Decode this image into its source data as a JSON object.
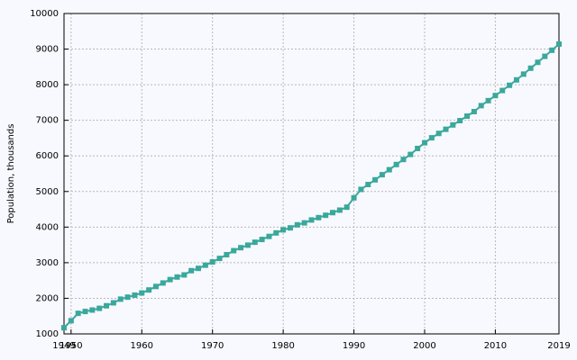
{
  "chart_data": {
    "type": "line",
    "y_label": "Population, thousands",
    "x": [
      1949,
      1950,
      1951,
      1952,
      1953,
      1954,
      1955,
      1956,
      1957,
      1958,
      1959,
      1960,
      1961,
      1962,
      1963,
      1964,
      1965,
      1966,
      1967,
      1968,
      1969,
      1970,
      1971,
      1972,
      1973,
      1974,
      1975,
      1976,
      1977,
      1978,
      1979,
      1980,
      1981,
      1982,
      1983,
      1984,
      1985,
      1986,
      1987,
      1988,
      1989,
      1990,
      1991,
      1992,
      1993,
      1994,
      1995,
      1996,
      1997,
      1998,
      1999,
      2000,
      2001,
      2002,
      2003,
      2004,
      2005,
      2006,
      2007,
      2008,
      2009,
      2010,
      2011,
      2012,
      2013,
      2014,
      2015,
      2016,
      2017,
      2018,
      2019
    ],
    "values": [
      1174,
      1370,
      1578,
      1630,
      1670,
      1718,
      1790,
      1873,
      1976,
      2032,
      2089,
      2150,
      2234,
      2332,
      2430,
      2526,
      2598,
      2657,
      2776,
      2841,
      2930,
      3022,
      3121,
      3225,
      3338,
      3422,
      3493,
      3575,
      3653,
      3738,
      3836,
      3922,
      3978,
      4064,
      4119,
      4200,
      4266,
      4332,
      4407,
      4477,
      4560,
      4822,
      5059,
      5196,
      5328,
      5472,
      5612,
      5758,
      5900,
      6041,
      6209,
      6369,
      6509,
      6631,
      6748,
      6870,
      6991,
      7117,
      7244,
      7412,
      7552,
      7695,
      7837,
      7984,
      8135,
      8297,
      8463,
      8628,
      8797,
      8968,
      9140
    ],
    "color": "#3aa89c",
    "xlim": [
      1949,
      2019
    ],
    "xticks": [
      1949,
      1950,
      1960,
      1970,
      1980,
      1990,
      2000,
      2010,
      2019
    ],
    "ylim": [
      1000,
      10000
    ],
    "yticks": [
      1000,
      2000,
      3000,
      4000,
      5000,
      6000,
      7000,
      8000,
      9000,
      10000
    ],
    "grid": true
  }
}
